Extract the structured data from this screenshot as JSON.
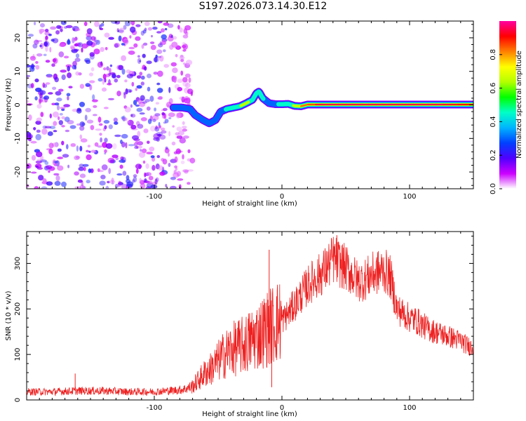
{
  "figure": {
    "title": "S197.2026.073.14.30.E12"
  },
  "chart_data": [
    {
      "type": "heatmap",
      "title": "S197.2026.073.14.30.E12",
      "xlabel": "Height of straight line (km)",
      "ylabel": "Frequency (Hz)",
      "xlim": [
        -200,
        150
      ],
      "ylim": [
        -25,
        25
      ],
      "xticks": [
        -100,
        0,
        100
      ],
      "yticks": [
        -20,
        -10,
        0,
        10,
        20
      ],
      "colorbar": {
        "label": "Normalized spectral amplitude",
        "range": [
          0,
          1
        ],
        "ticks": [
          0.0,
          0.2,
          0.4,
          0.6,
          0.8
        ],
        "tick_labels": [
          "0.0",
          "0.2",
          "0.4",
          "0.6",
          "0.8"
        ],
        "colormap": [
          "#ffffff",
          "#cc00ff",
          "#5000ff",
          "#0040ff",
          "#00b4ff",
          "#00ffc8",
          "#00ff00",
          "#b4ff00",
          "#ffff00",
          "#ff8000",
          "#ff0000",
          "#ff00a0"
        ]
      },
      "doppler_ridge": {
        "x": [
          -85,
          -78,
          -72,
          -68,
          -62,
          -57,
          -52,
          -48,
          -43,
          -38,
          -33,
          -28,
          -23,
          -20,
          -18,
          -15,
          -10,
          -5,
          0,
          5,
          10,
          15,
          20,
          30,
          50,
          75,
          100,
          125,
          150
        ],
        "y": [
          -0.8,
          -0.8,
          -1.2,
          -3,
          -4.5,
          -5.5,
          -4.5,
          -2,
          -1.2,
          -0.8,
          -0.4,
          0.5,
          1.5,
          3.5,
          4,
          2,
          0.5,
          0.2,
          0.2,
          0.3,
          -0.3,
          -0.4,
          0.1,
          0.1,
          0.1,
          0.1,
          0.1,
          0.1,
          0.1
        ],
        "amplitude": [
          0.35,
          0.3,
          0.3,
          0.3,
          0.32,
          0.33,
          0.35,
          0.38,
          0.42,
          0.55,
          0.6,
          0.7,
          0.55,
          0.5,
          0.45,
          0.4,
          0.38,
          0.4,
          0.45,
          0.5,
          0.6,
          0.9,
          0.8,
          0.95,
          0.95,
          0.95,
          0.95,
          0.95,
          0.9
        ]
      },
      "noise_region": {
        "x_from": -200,
        "x_to": -70,
        "amplitude_range": [
          0.03,
          0.25
        ]
      },
      "colors": {
        "frame": "#000000",
        "background": "#ffffff"
      }
    },
    {
      "type": "line",
      "xlabel": "Height of straight line (km)",
      "ylabel": "SNR (10 * v/v)",
      "xlim": [
        -200,
        150
      ],
      "ylim": [
        0,
        370
      ],
      "xticks": [
        -100,
        0,
        100
      ],
      "yticks": [
        0,
        100,
        200,
        300
      ],
      "series": [
        {
          "name": "SNR",
          "color": "#ee2020",
          "x": [
            -200,
            -180,
            -160,
            -140,
            -120,
            -100,
            -90,
            -80,
            -75,
            -70,
            -65,
            -60,
            -55,
            -50,
            -45,
            -40,
            -35,
            -30,
            -25,
            -20,
            -15,
            -10,
            -5,
            0,
            5,
            10,
            15,
            20,
            25,
            30,
            35,
            40,
            45,
            50,
            55,
            60,
            65,
            70,
            75,
            80,
            85,
            88,
            90,
            95,
            100,
            105,
            110,
            115,
            120,
            125,
            130,
            135,
            140,
            145,
            150
          ],
          "y": [
            18,
            18,
            20,
            20,
            18,
            18,
            20,
            22,
            25,
            30,
            45,
            60,
            70,
            85,
            100,
            110,
            115,
            120,
            130,
            140,
            150,
            160,
            170,
            175,
            190,
            210,
            230,
            250,
            265,
            275,
            290,
            310,
            300,
            290,
            275,
            260,
            265,
            275,
            280,
            285,
            270,
            230,
            200,
            190,
            180,
            175,
            165,
            155,
            150,
            145,
            140,
            135,
            130,
            120,
            115
          ],
          "spikes": [
            {
              "x": -162,
              "y": 58
            },
            {
              "x": -10,
              "y": 330
            },
            {
              "x": -8,
              "y": 28
            },
            {
              "x": 43,
              "y": 362
            }
          ]
        }
      ]
    }
  ]
}
